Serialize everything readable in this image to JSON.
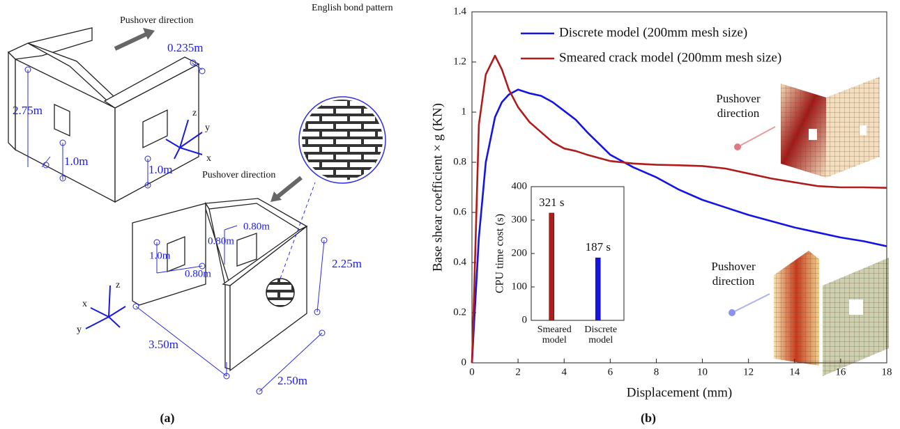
{
  "diagram": {
    "top_pushover": "Pushover direction",
    "thickness": "0.235m",
    "top_height": "2.75m",
    "top_window_left": "1.0m",
    "top_window_right": "1.0m",
    "top_axes": {
      "z": "z",
      "y": "y",
      "x": "x"
    },
    "bottom_pushover": "Pushover direction",
    "bond_label": "English bond pattern",
    "win_w1": "0.80m",
    "win_w2": "0.80m",
    "win_h": "1.0m",
    "win_w3": "0.80m",
    "height": "2.25m",
    "length": "3.50m",
    "width": "2.50m",
    "bottom_axes": {
      "z": "z",
      "x": "x",
      "y": "y"
    },
    "panel_a": "(a)",
    "panel_b": "(b)"
  },
  "chart_data": [
    {
      "type": "line",
      "xlabel": "Displacement (mm)",
      "ylabel": "Base shear coefficient × g (KN)",
      "x": [
        0,
        0.1,
        0.3,
        0.6,
        1,
        1.3,
        1.6,
        2,
        2.5,
        3,
        3.5,
        4,
        4.5,
        5,
        6,
        7,
        8,
        9,
        10,
        11,
        12,
        13,
        14,
        15,
        16,
        17,
        18
      ],
      "series": [
        {
          "name": "Discrete model (200mm mesh size)",
          "color": "#1414e6",
          "values": [
            0,
            0.17,
            0.5,
            0.8,
            0.98,
            1.04,
            1.07,
            1.09,
            1.075,
            1.065,
            1.04,
            1.005,
            0.97,
            0.92,
            0.83,
            0.78,
            0.74,
            0.69,
            0.65,
            0.62,
            0.59,
            0.565,
            0.54,
            0.52,
            0.5,
            0.485,
            0.465
          ]
        },
        {
          "name": "Smeared crack model (200mm mesh size)",
          "color": "#b01c1c",
          "values": [
            0,
            0.3,
            0.95,
            1.15,
            1.225,
            1.17,
            1.09,
            1.02,
            0.96,
            0.92,
            0.88,
            0.855,
            0.845,
            0.83,
            0.805,
            0.795,
            0.79,
            0.788,
            0.785,
            0.775,
            0.755,
            0.735,
            0.72,
            0.705,
            0.7,
            0.7,
            0.698
          ]
        }
      ],
      "xlim": [
        0,
        18
      ],
      "xticks": [
        0,
        2,
        4,
        6,
        8,
        10,
        12,
        14,
        16,
        18
      ],
      "ylim": [
        0,
        1.4
      ],
      "yticks": [
        0,
        0.2,
        0.4,
        0.6,
        0.8,
        1,
        1.2,
        1.4
      ],
      "legend": "top",
      "annotations": [
        "Pushover direction",
        "Pushover direction"
      ]
    },
    {
      "type": "bar",
      "ylabel": "CPU time cost (s)",
      "categories": [
        "Smeared model",
        "Discrete model"
      ],
      "values": [
        321,
        187
      ],
      "value_labels": [
        "321 s",
        "187 s"
      ],
      "colors": [
        "#b01c1c",
        "#1414e6"
      ],
      "ylim": [
        0,
        400
      ],
      "yticks": [
        0,
        100,
        200,
        300,
        400
      ]
    }
  ]
}
